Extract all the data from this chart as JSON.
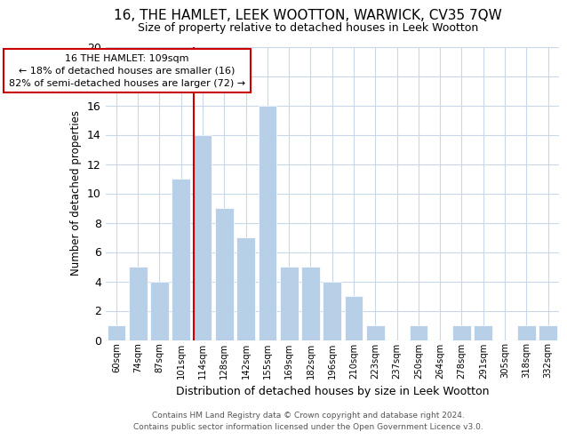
{
  "title": "16, THE HAMLET, LEEK WOOTTON, WARWICK, CV35 7QW",
  "subtitle": "Size of property relative to detached houses in Leek Wootton",
  "xlabel": "Distribution of detached houses by size in Leek Wootton",
  "ylabel": "Number of detached properties",
  "bar_labels": [
    "60sqm",
    "74sqm",
    "87sqm",
    "101sqm",
    "114sqm",
    "128sqm",
    "142sqm",
    "155sqm",
    "169sqm",
    "182sqm",
    "196sqm",
    "210sqm",
    "223sqm",
    "237sqm",
    "250sqm",
    "264sqm",
    "278sqm",
    "291sqm",
    "305sqm",
    "318sqm",
    "332sqm"
  ],
  "bar_values": [
    1,
    5,
    4,
    11,
    14,
    9,
    7,
    16,
    5,
    5,
    4,
    3,
    1,
    0,
    1,
    0,
    1,
    1,
    0,
    1,
    1
  ],
  "bar_color": "#b8cfe8",
  "bar_edge_color": "#ffffff",
  "reference_line_index": 4,
  "annotation_title": "16 THE HAMLET: 109sqm",
  "annotation_line1": "← 18% of detached houses are smaller (16)",
  "annotation_line2": "82% of semi-detached houses are larger (72) →",
  "annotation_box_color": "#ffffff",
  "annotation_box_edge": "#cc0000",
  "reference_line_color": "#cc0000",
  "ylim": [
    0,
    20
  ],
  "yticks": [
    0,
    2,
    4,
    6,
    8,
    10,
    12,
    14,
    16,
    18,
    20
  ],
  "footer_line1": "Contains HM Land Registry data © Crown copyright and database right 2024.",
  "footer_line2": "Contains public sector information licensed under the Open Government Licence v3.0.",
  "bg_color": "#ffffff",
  "grid_color": "#c8d8e8"
}
